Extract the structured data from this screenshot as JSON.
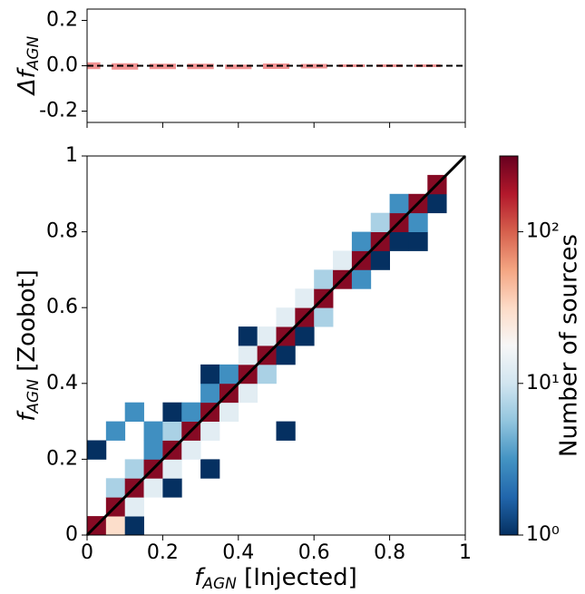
{
  "chart_data": {
    "type": "hist2d",
    "colormap": "RdBu_r",
    "log_color": true,
    "xlabel": {
      "main": "f",
      "sub": "AGN",
      "rest": " [Injected]"
    },
    "ylabel": {
      "main": "f",
      "sub": "AGN",
      "rest": " [Zoobot]"
    },
    "colorbar_label": "Number of sources",
    "xlim": [
      0,
      1
    ],
    "ylim": [
      0,
      1
    ],
    "xticks": [
      0,
      0.2,
      0.4,
      0.6,
      0.8,
      1
    ],
    "yticks": [
      0,
      0.2,
      0.4,
      0.6,
      0.8,
      1
    ],
    "clim": [
      1,
      316
    ],
    "cticks": [
      {
        "value": 1,
        "label": "10⁰"
      },
      {
        "value": 10,
        "label": "10¹"
      },
      {
        "value": 100,
        "label": "10²"
      }
    ],
    "xbins": [
      0,
      0.05,
      0.1,
      0.15,
      0.2,
      0.25,
      0.3,
      0.35,
      0.4,
      0.45,
      0.5,
      0.55,
      0.6,
      0.65,
      0.7,
      0.75,
      0.8,
      0.85,
      0.9,
      0.95,
      1
    ],
    "ybins": [
      0,
      0.05,
      0.1,
      0.15,
      0.2,
      0.25,
      0.3,
      0.35,
      0.4,
      0.45,
      0.5,
      0.55,
      0.6,
      0.65,
      0.7,
      0.75,
      0.8,
      0.85,
      0.9,
      0.95,
      1
    ],
    "counts": [
      [
        250,
        30,
        1,
        null,
        null,
        null,
        null,
        null,
        null,
        null,
        null,
        null,
        null,
        null,
        null,
        null,
        null,
        null,
        null,
        null
      ],
      [
        null,
        250,
        13,
        null,
        null,
        null,
        null,
        null,
        null,
        null,
        null,
        null,
        null,
        null,
        null,
        null,
        null,
        null,
        null,
        null
      ],
      [
        null,
        7,
        250,
        13,
        1,
        null,
        null,
        null,
        null,
        null,
        null,
        null,
        null,
        null,
        null,
        null,
        null,
        null,
        null,
        null
      ],
      [
        null,
        null,
        7,
        250,
        13,
        null,
        1,
        null,
        null,
        null,
        null,
        null,
        null,
        null,
        null,
        null,
        null,
        null,
        null,
        null
      ],
      [
        1,
        null,
        null,
        3,
        250,
        13,
        null,
        null,
        null,
        null,
        null,
        null,
        null,
        null,
        null,
        null,
        null,
        null,
        null,
        null
      ],
      [
        null,
        3,
        null,
        3,
        7,
        250,
        13,
        null,
        null,
        null,
        1,
        null,
        null,
        null,
        null,
        null,
        null,
        null,
        null,
        null
      ],
      [
        null,
        null,
        3,
        null,
        1,
        3,
        250,
        13,
        null,
        null,
        null,
        null,
        null,
        null,
        null,
        null,
        null,
        null,
        null,
        null
      ],
      [
        null,
        null,
        null,
        null,
        null,
        null,
        3,
        250,
        13,
        null,
        null,
        null,
        null,
        null,
        null,
        null,
        null,
        null,
        null,
        null
      ],
      [
        null,
        null,
        null,
        null,
        null,
        null,
        1,
        3,
        250,
        7,
        null,
        null,
        null,
        null,
        null,
        null,
        null,
        null,
        null,
        null
      ],
      [
        null,
        null,
        null,
        null,
        null,
        null,
        null,
        null,
        13,
        250,
        1,
        null,
        null,
        null,
        null,
        null,
        null,
        null,
        null,
        null
      ],
      [
        null,
        null,
        null,
        null,
        null,
        null,
        null,
        null,
        1,
        13,
        250,
        1,
        null,
        null,
        null,
        null,
        null,
        null,
        null,
        null
      ],
      [
        null,
        null,
        null,
        null,
        null,
        null,
        null,
        null,
        null,
        null,
        13,
        250,
        7,
        null,
        null,
        null,
        null,
        null,
        null,
        null
      ],
      [
        null,
        null,
        null,
        null,
        null,
        null,
        null,
        null,
        null,
        null,
        null,
        13,
        250,
        null,
        null,
        null,
        null,
        null,
        null,
        null
      ],
      [
        null,
        null,
        null,
        null,
        null,
        null,
        null,
        null,
        null,
        null,
        null,
        null,
        7,
        250,
        3,
        null,
        null,
        null,
        null,
        null
      ],
      [
        null,
        null,
        null,
        null,
        null,
        null,
        null,
        null,
        null,
        null,
        null,
        null,
        null,
        13,
        250,
        1,
        null,
        null,
        null,
        null
      ],
      [
        null,
        null,
        null,
        null,
        null,
        null,
        null,
        null,
        null,
        null,
        null,
        null,
        null,
        null,
        3,
        250,
        1,
        1,
        null,
        null
      ],
      [
        null,
        null,
        null,
        null,
        null,
        null,
        null,
        null,
        null,
        null,
        null,
        null,
        null,
        null,
        null,
        7,
        250,
        3,
        null,
        null
      ],
      [
        null,
        null,
        null,
        null,
        null,
        null,
        null,
        null,
        null,
        null,
        null,
        null,
        null,
        null,
        null,
        null,
        3,
        250,
        1,
        null
      ],
      [
        null,
        null,
        null,
        null,
        null,
        null,
        null,
        null,
        null,
        null,
        null,
        null,
        null,
        null,
        null,
        null,
        null,
        null,
        250,
        null
      ],
      [
        null,
        null,
        null,
        null,
        null,
        null,
        null,
        null,
        null,
        null,
        null,
        null,
        null,
        null,
        null,
        null,
        null,
        null,
        null,
        null
      ]
    ],
    "residuals": {
      "ylabel": {
        "main": "Δf",
        "sub": "AGN"
      },
      "ylim": [
        -0.25,
        0.25
      ],
      "yticks": [
        0.2,
        {
          "value": 0,
          "label": "0.0"
        },
        -0.2
      ],
      "color": "#f08080",
      "x": [
        0,
        0.1,
        0.2,
        0.3,
        0.4,
        0.5,
        0.6,
        0.7,
        0.8,
        0.9
      ],
      "values": [
        0,
        -0.003,
        -0.003,
        -0.003,
        -0.005,
        -0.002,
        -0.002,
        0,
        0,
        0
      ],
      "errors": [
        0.015,
        0.014,
        0.012,
        0.012,
        0.01,
        0.012,
        0.01,
        0.006,
        0.006,
        0.006
      ]
    }
  }
}
